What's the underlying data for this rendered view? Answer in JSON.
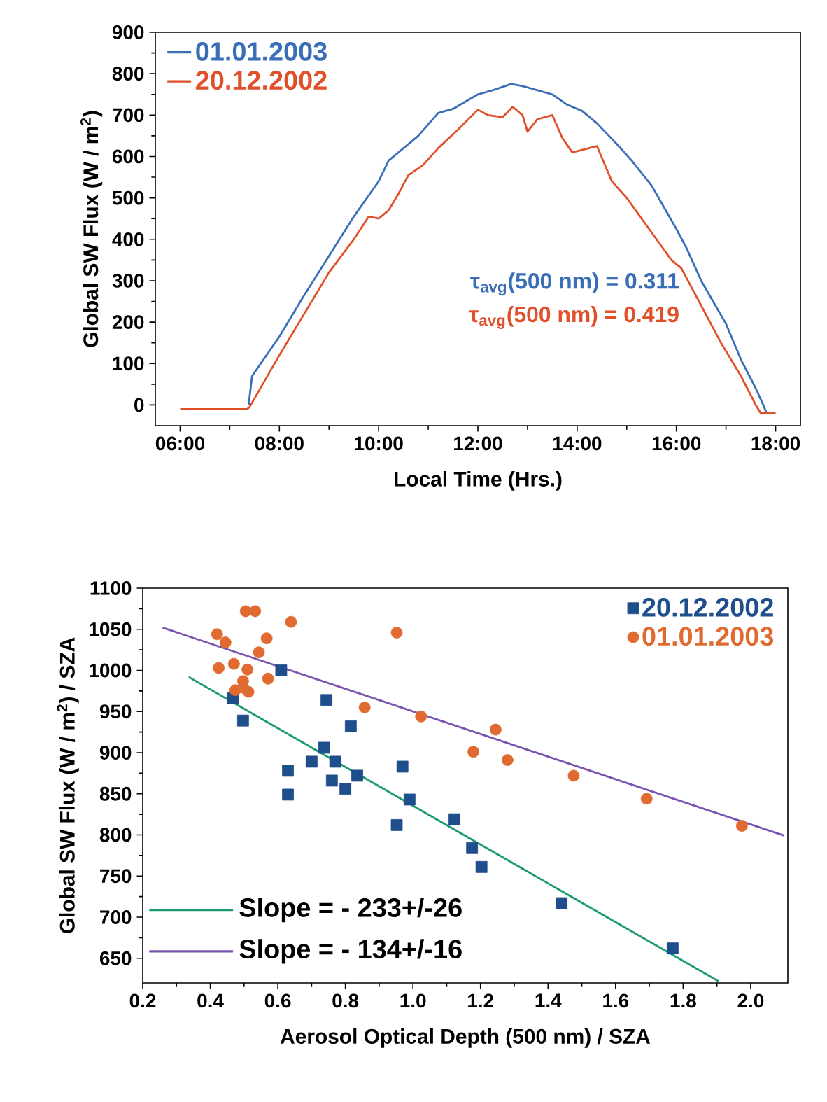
{
  "chart_data": [
    {
      "type": "line",
      "xlabel": "Local Time (Hrs.)",
      "ylabel": "Global SW Flux (W / m$^{2}$)",
      "xlim": [
        5.5,
        18.5
      ],
      "ylim": [
        -50,
        900
      ],
      "xticks": [
        {
          "value": 6,
          "label": "06:00"
        },
        {
          "value": 8,
          "label": "08:00"
        },
        {
          "value": 10,
          "label": "10:00"
        },
        {
          "value": 12,
          "label": "12:00"
        },
        {
          "value": 14,
          "label": "14:00"
        },
        {
          "value": 16,
          "label": "16:00"
        },
        {
          "value": 18,
          "label": "18:00"
        }
      ],
      "yticks": [
        0,
        100,
        200,
        300,
        400,
        500,
        600,
        700,
        800,
        900
      ],
      "legend": "top left",
      "annotations": [
        "τ$_{avg}$(500 nm) = 0.311",
        "τ$_{avg}$(500 nm) = 0.419"
      ],
      "series": [
        {
          "name": "01.01.2003",
          "color": "#3a6fb8",
          "x": [
            7.38,
            7.45,
            8.0,
            8.5,
            9.0,
            9.5,
            10.0,
            10.2,
            10.5,
            10.8,
            11.2,
            11.5,
            12.0,
            12.3,
            12.67,
            12.9,
            13.2,
            13.5,
            13.8,
            14.1,
            14.4,
            14.8,
            15.1,
            15.5,
            16.0,
            16.2,
            16.5,
            17.0,
            17.3,
            17.6,
            17.75,
            17.82
          ],
          "values": [
            0,
            70,
            165,
            265,
            360,
            455,
            540,
            590,
            620,
            650,
            705,
            715,
            750,
            760,
            775,
            770,
            760,
            750,
            725,
            710,
            680,
            630,
            590,
            530,
            425,
            380,
            300,
            196,
            110,
            40,
            0,
            -20
          ]
        },
        {
          "name": "20.12.2002",
          "color": "#e0502a",
          "x": [
            6.0,
            7.35,
            7.4,
            8.0,
            8.5,
            9.0,
            9.5,
            9.8,
            10.0,
            10.2,
            10.4,
            10.6,
            10.9,
            11.2,
            11.6,
            12.0,
            12.2,
            12.5,
            12.7,
            12.9,
            13.0,
            13.2,
            13.5,
            13.7,
            13.9,
            14.0,
            14.4,
            14.7,
            15.0,
            15.3,
            15.6,
            15.9,
            16.1,
            16.5,
            16.9,
            17.3,
            17.6,
            17.7,
            18.0
          ],
          "values": [
            -10,
            -10,
            -5,
            120,
            220,
            320,
            400,
            455,
            450,
            470,
            510,
            555,
            580,
            620,
            665,
            713,
            700,
            695,
            720,
            700,
            660,
            690,
            700,
            645,
            610,
            613,
            625,
            540,
            500,
            450,
            400,
            350,
            330,
            240,
            150,
            70,
            0,
            -20,
            -20
          ]
        }
      ]
    },
    {
      "type": "scatter",
      "xlabel": "Aerosol Optical Depth (500 nm) / SZA",
      "ylabel": "Global SW Flux (W / m$^{2}$) / SZA",
      "xlim": [
        0.2,
        2.11
      ],
      "ylim": [
        620,
        1100
      ],
      "xticks": [
        0.2,
        0.4,
        0.6,
        0.8,
        {
          "value": 1,
          "label": "1.0"
        },
        1.2,
        1.4,
        1.6,
        1.8,
        {
          "value": 2,
          "label": "2.0"
        }
      ],
      "yticks": [
        650,
        700,
        750,
        800,
        850,
        900,
        950,
        1000,
        1050,
        1100
      ],
      "legend": "top right",
      "series": [
        {
          "name": "20.12.2002",
          "color": "#1f4e8c",
          "marker": "square",
          "x": [
            0.61,
            0.744,
            0.497,
            0.467,
            0.816,
            0.63,
            0.63,
            0.7,
            0.737,
            0.77,
            0.76,
            0.8,
            0.835,
            0.969,
            0.99,
            0.952,
            1.123,
            1.175,
            1.203,
            1.44,
            1.769
          ],
          "values": [
            1000,
            964,
            939,
            966,
            932,
            878,
            849,
            889,
            906,
            889,
            866,
            856,
            872,
            883,
            843,
            812,
            819,
            784,
            761,
            717,
            662
          ]
        },
        {
          "name": "01.01.2003",
          "color": "#e06a30",
          "marker": "circle",
          "x": [
            0.42,
            0.445,
            0.505,
            0.533,
            0.639,
            0.567,
            0.544,
            0.425,
            0.47,
            0.51,
            0.497,
            0.571,
            0.474,
            0.513,
            0.497,
            0.952,
            0.857,
            1.024,
            1.245,
            1.179,
            1.28,
            1.476,
            1.692,
            1.974
          ],
          "values": [
            1044,
            1034,
            1072,
            1072,
            1059,
            1039,
            1022,
            1003,
            1008,
            1001,
            987,
            990,
            976,
            974,
            979,
            1046,
            955,
            944,
            928,
            901,
            891,
            872,
            844,
            811
          ]
        },
        {
          "name": "Slope = - 233+/-26",
          "type": "line",
          "color": "#1a9a70",
          "x": [
            0.336,
            1.905
          ],
          "values": [
            992,
            622
          ]
        },
        {
          "name": "Slope = - 134+/-16",
          "type": "line",
          "color": "#7a55b0",
          "x": [
            0.259,
            2.1
          ],
          "values": [
            1052,
            799
          ]
        }
      ]
    }
  ]
}
